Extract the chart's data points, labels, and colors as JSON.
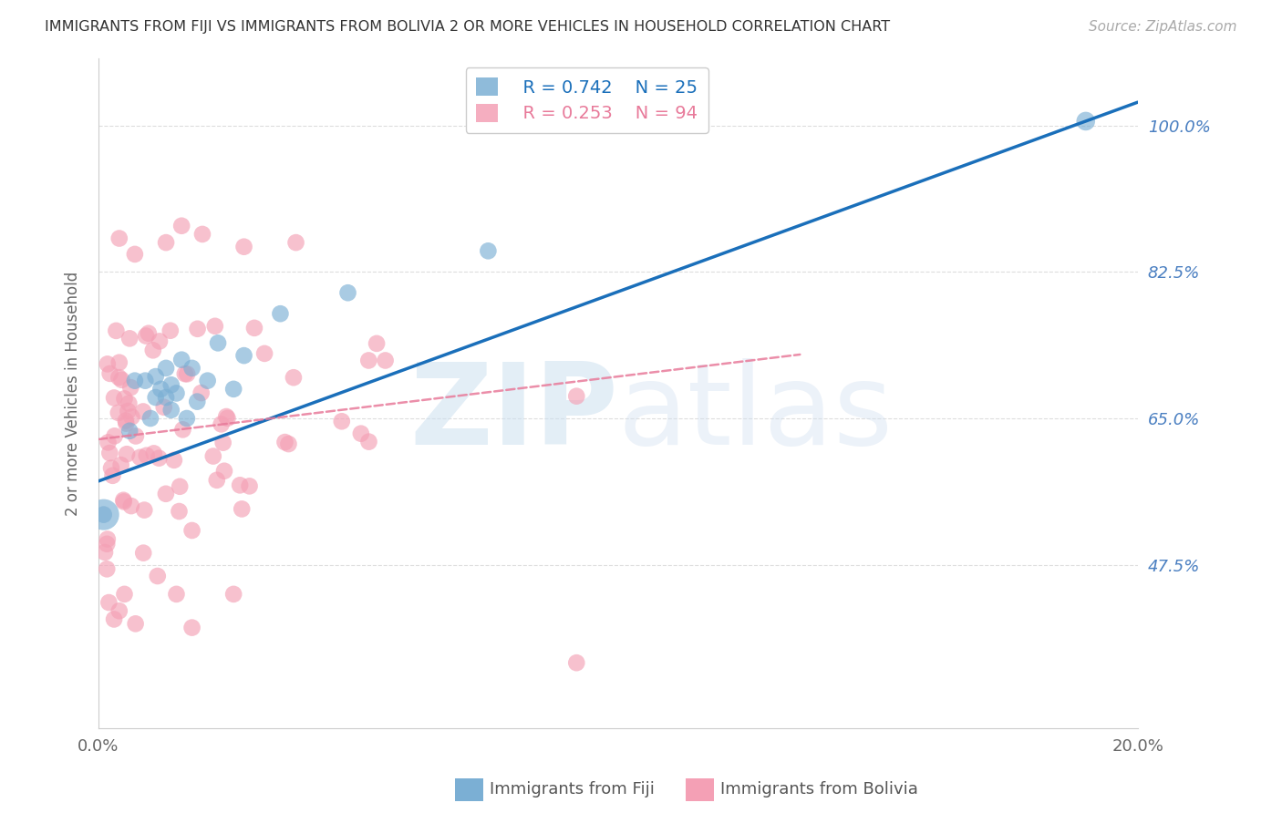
{
  "title": "IMMIGRANTS FROM FIJI VS IMMIGRANTS FROM BOLIVIA 2 OR MORE VEHICLES IN HOUSEHOLD CORRELATION CHART",
  "source": "Source: ZipAtlas.com",
  "ylabel": "2 or more Vehicles in Household",
  "xmin": 0.0,
  "xmax": 0.2,
  "ymin": 0.28,
  "ymax": 1.08,
  "yticks": [
    0.475,
    0.65,
    0.825,
    1.0
  ],
  "ytick_labels": [
    "47.5%",
    "65.0%",
    "82.5%",
    "100.0%"
  ],
  "xticks": [
    0.0,
    0.05,
    0.1,
    0.15,
    0.2
  ],
  "xtick_labels": [
    "0.0%",
    "",
    "",
    "",
    "20.0%"
  ],
  "fiji_color": "#7bafd4",
  "bolivia_color": "#f4a0b5",
  "fiji_line_color": "#1a6fba",
  "bolivia_line_color": "#e87a9a",
  "legend_R_fiji": "R = 0.742",
  "legend_N_fiji": "N = 25",
  "legend_R_bolivia": "R = 0.253",
  "legend_N_bolivia": "N = 94",
  "background_color": "#ffffff",
  "grid_color": "#dddddd",
  "right_label_color": "#4a7fc1",
  "fiji_line_x0": 0.0,
  "fiji_line_y0": 0.575,
  "fiji_line_x1": 0.19,
  "fiji_line_y1": 1.005,
  "bolivia_line_x0": 0.0,
  "bolivia_line_y0": 0.625,
  "bolivia_line_x1": 0.12,
  "bolivia_line_y1": 0.715
}
